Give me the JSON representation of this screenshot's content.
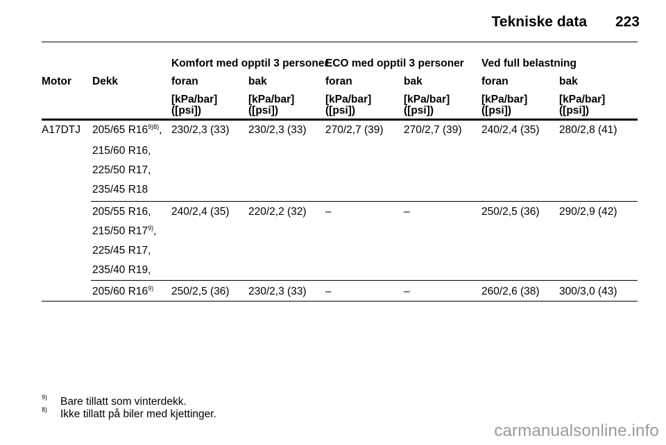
{
  "header": {
    "title": "Tekniske data",
    "page_number": "223"
  },
  "table": {
    "group_headers": [
      "Komfort med opptil 3 personer",
      "ECO med opptil 3 personer",
      "Ved full belastning"
    ],
    "col_motor": "Motor",
    "col_dekk": "Dekk",
    "sub_headers": [
      "foran",
      "bak",
      "foran",
      "bak",
      "foran",
      "bak"
    ],
    "unit_line1": "[kPa/bar]",
    "unit_line2": "([psi])",
    "groups": [
      {
        "motor": "A17DTJ",
        "tyres": [
          {
            "text": "205/65 R16",
            "sup": "9)8)",
            "suffix": ","
          },
          {
            "text": "215/60 R16,",
            "sup": "",
            "suffix": ""
          },
          {
            "text": "225/50 R17,",
            "sup": "",
            "suffix": ""
          },
          {
            "text": "235/45 R18",
            "sup": "",
            "suffix": ""
          }
        ],
        "values": [
          "230/2,3 (33)",
          "230/2,3 (33)",
          "270/2,7 (39)",
          "270/2,7 (39)",
          "240/2,4 (35)",
          "280/2,8 (41)"
        ]
      },
      {
        "motor": "",
        "tyres": [
          {
            "text": "205/55 R16,",
            "sup": "",
            "suffix": ""
          },
          {
            "text": "215/50 R17",
            "sup": "9)",
            "suffix": ","
          },
          {
            "text": "225/45 R17,",
            "sup": "",
            "suffix": ""
          },
          {
            "text": "235/40 R19,",
            "sup": "",
            "suffix": ""
          }
        ],
        "values": [
          "240/2,4 (35)",
          "220/2,2 (32)",
          "–",
          "–",
          "250/2,5 (36)",
          "290/2,9 (42)"
        ]
      },
      {
        "motor": "",
        "tyres": [
          {
            "text": "205/60 R16",
            "sup": "9)",
            "suffix": ""
          }
        ],
        "values": [
          "250/2,5 (36)",
          "230/2,3 (33)",
          "–",
          "–",
          "260/2,6 (38)",
          "300/3,0 (43)"
        ]
      }
    ]
  },
  "footnotes": [
    {
      "mark": "9)",
      "text": "Bare tillatt som vinterdekk."
    },
    {
      "mark": "8)",
      "text": "Ikke tillatt på biler med kjettinger."
    }
  ],
  "watermark": "carmanualsonline.info"
}
